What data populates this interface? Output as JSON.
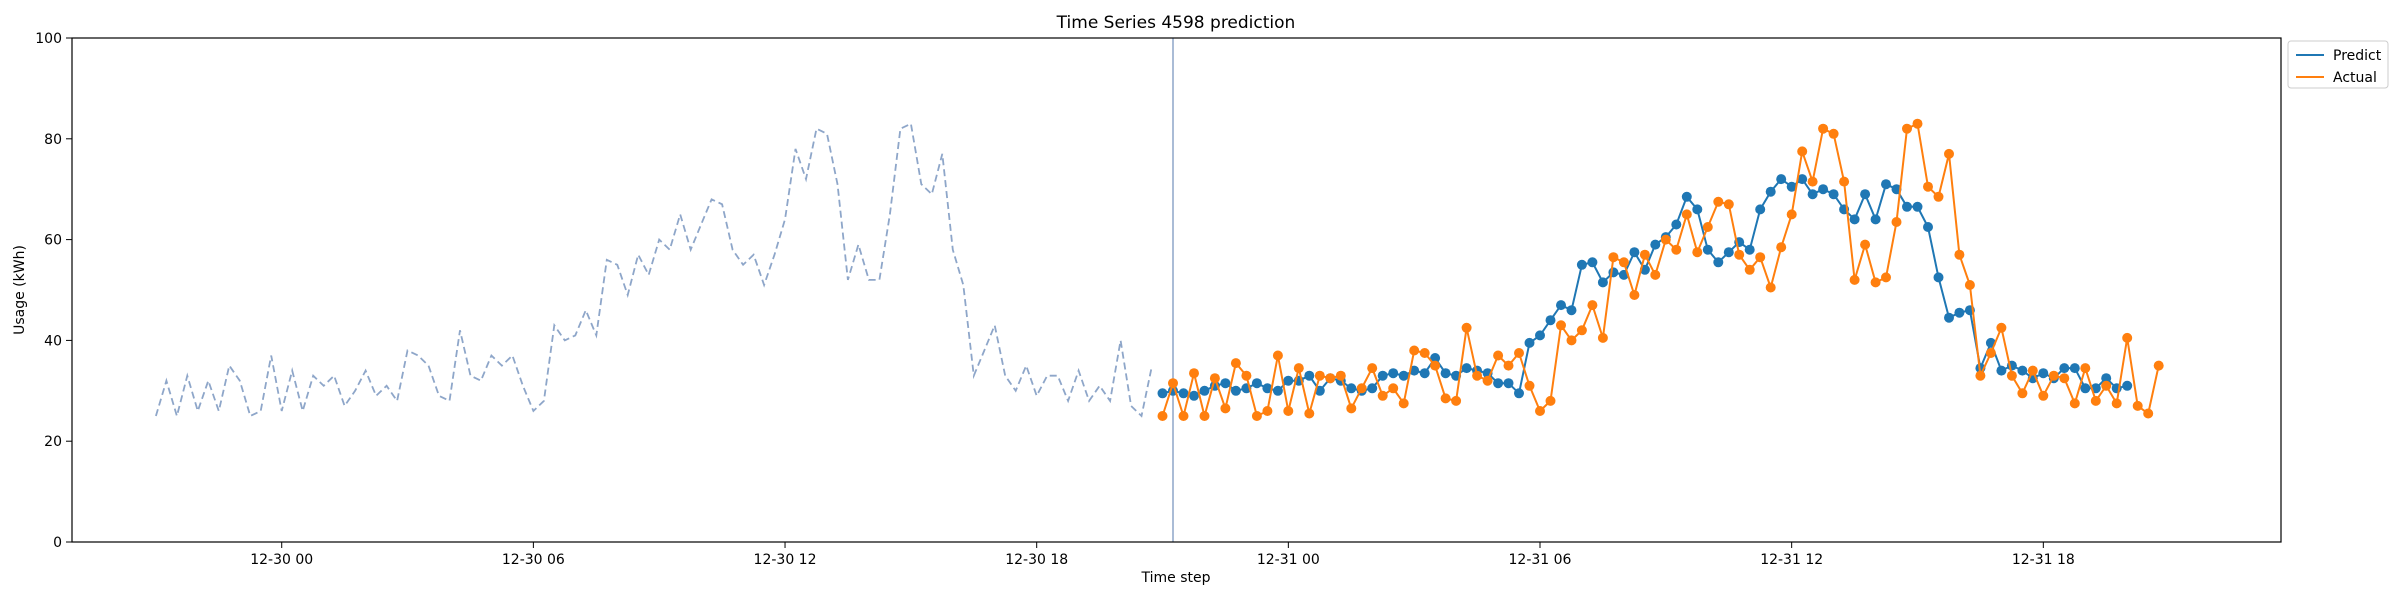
{
  "chart_data": {
    "type": "line",
    "title": "Time Series 4598 prediction",
    "xlabel": "Time step",
    "ylabel": "Usage (kWh)",
    "ylim": [
      0,
      100
    ],
    "yticks": [
      0,
      20,
      40,
      60,
      80,
      100
    ],
    "xlim": [
      "12-29 19:00",
      "12-31 23:40"
    ],
    "xticks": [
      "12-30 00",
      "12-30 06",
      "12-30 12",
      "12-30 18",
      "12-31 00",
      "12-31 06",
      "12-31 12",
      "12-31 18"
    ],
    "grid": false,
    "legend_position": "outside top-right",
    "colors": {
      "history": "#8ea6c9",
      "predict": "#1f77b4",
      "actual": "#ff7f0e",
      "forecast_start": "#8ea6c9"
    },
    "forecast_start": "12-30 21:15",
    "history": {
      "start": "12-29 21:00",
      "step_minutes": 15,
      "values": [
        25,
        32,
        25,
        33,
        26,
        32,
        26,
        35,
        32,
        25,
        26,
        37,
        26,
        34,
        26,
        33,
        31,
        33,
        27,
        30,
        34,
        29,
        31,
        28,
        38,
        37,
        35,
        29,
        28,
        42,
        33,
        32,
        37,
        35,
        37,
        31,
        26,
        28,
        43,
        40,
        41,
        46,
        41,
        56,
        55,
        49,
        57,
        53,
        60,
        58,
        65,
        58,
        63,
        68,
        67,
        58,
        55,
        57,
        51,
        57,
        64,
        78,
        72,
        82,
        81,
        71,
        52,
        59,
        52,
        52,
        65,
        82,
        83,
        71,
        69,
        77,
        58,
        51,
        33,
        38,
        43,
        33,
        30,
        35,
        29,
        33,
        33,
        28,
        34,
        28,
        31,
        28,
        40,
        27,
        25,
        35
      ]
    },
    "series": [
      {
        "name": "Predict",
        "start": "12-30 21:00",
        "step_minutes": 15,
        "values": [
          29.5,
          30,
          29.5,
          29,
          30,
          31,
          31.5,
          30,
          30.5,
          31.5,
          30.5,
          30,
          32,
          32,
          33,
          30,
          32.5,
          32,
          30.5,
          30,
          30.5,
          33,
          33.5,
          33,
          34,
          33.5,
          36.5,
          33.5,
          33,
          34.5,
          34,
          33.5,
          31.5,
          31.5,
          29.5,
          39.5,
          41,
          44,
          47,
          46,
          55,
          55.5,
          51.5,
          53.5,
          53,
          57.5,
          54,
          59,
          60.5,
          63,
          68.5,
          66,
          58,
          55.5,
          57.5,
          59.5,
          58,
          66,
          69.5,
          72,
          70.5,
          72,
          69,
          70,
          69,
          66,
          64,
          69,
          64,
          71,
          70,
          66.5,
          66.5,
          62.5,
          52.5,
          44.5,
          45.5,
          46,
          34.5,
          39.5,
          34,
          35,
          34,
          32.5,
          33.5,
          32.5,
          34.5,
          34.5,
          30.5,
          30.5,
          32.5,
          30.5,
          31
        ]
      },
      {
        "name": "Actual",
        "start": "12-30 21:00",
        "step_minutes": 15,
        "values": [
          25,
          31.5,
          25,
          33.5,
          25,
          32.5,
          26.5,
          35.5,
          33,
          25,
          26,
          37,
          26,
          34.5,
          25.5,
          33,
          32.5,
          33,
          26.5,
          30.5,
          34.5,
          29,
          30.5,
          27.5,
          38,
          37.5,
          35,
          28.5,
          28,
          42.5,
          33,
          32,
          37,
          35,
          37.5,
          31,
          26,
          28,
          43,
          40,
          42,
          47,
          40.5,
          56.5,
          55.5,
          49,
          57,
          53,
          60,
          58,
          65,
          57.5,
          62.5,
          67.5,
          67,
          57,
          54,
          56.5,
          50.5,
          58.5,
          65,
          77.5,
          71.5,
          82,
          81,
          71.5,
          52,
          59,
          51.5,
          52.5,
          63.5,
          82,
          83,
          70.5,
          68.5,
          77,
          57,
          51,
          33,
          37.5,
          42.5,
          33,
          29.5,
          34,
          29,
          33,
          32.5,
          27.5,
          34.5,
          28,
          31,
          27.5,
          40.5,
          27,
          25.5,
          35
        ]
      }
    ]
  }
}
